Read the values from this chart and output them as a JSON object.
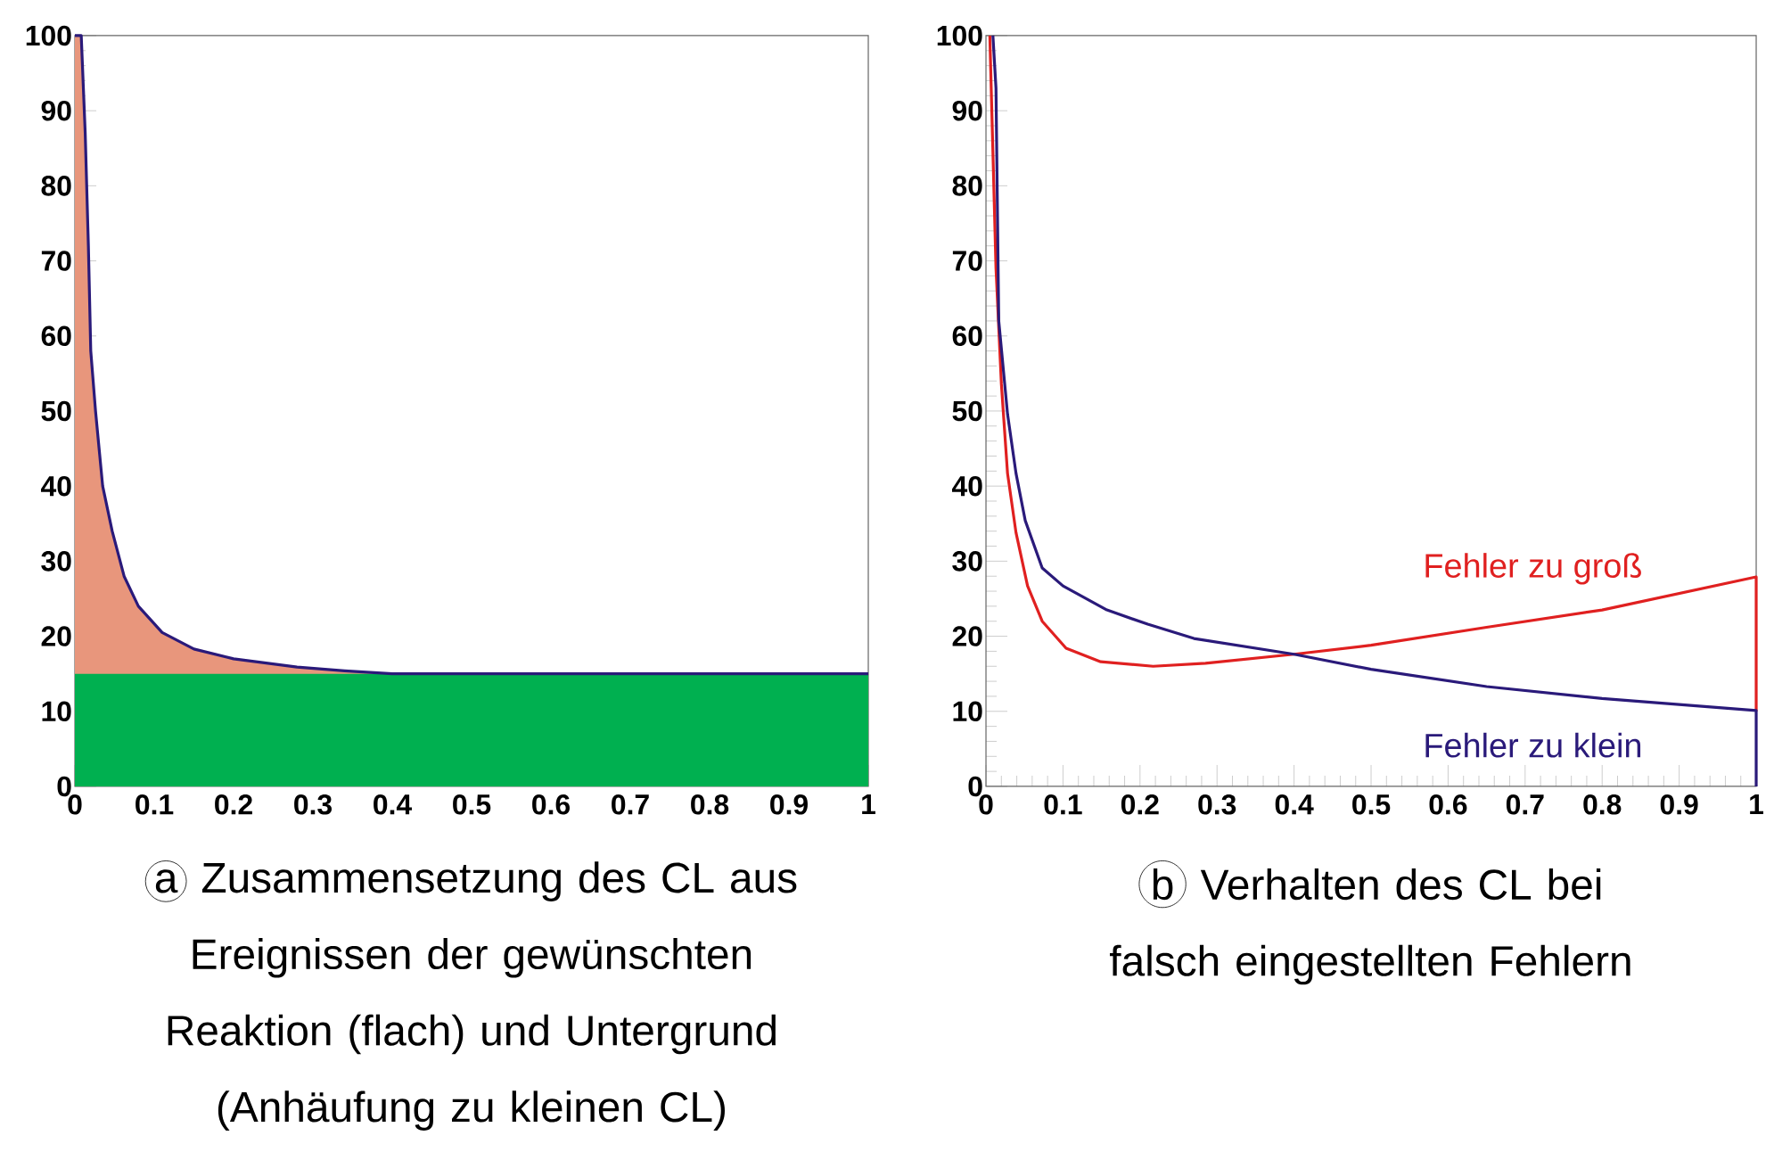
{
  "chart_data": [
    {
      "type": "area",
      "title": "Zusammensetzung des CL aus Ereignissen der gewünschten Reaktion (flach) und Untergrund (Anhäufung zu kleinen CL)",
      "annotations": [
        "a"
      ],
      "legend": false,
      "grid": false,
      "x": [
        0,
        0.008,
        0.013,
        0.017,
        0.02,
        0.026,
        0.035,
        0.047,
        0.062,
        0.08,
        0.11,
        0.15,
        0.2,
        0.28,
        0.34,
        0.4,
        0.5,
        0.6,
        0.7,
        0.8,
        0.9,
        1.0
      ],
      "series": [
        {
          "color": "#e8967c",
          "values": [
            100,
            100,
            87,
            72,
            58,
            50,
            40,
            34,
            28,
            24,
            20.5,
            18.3,
            17,
            15.9,
            15.4,
            15,
            15,
            15,
            15,
            15,
            15,
            15
          ]
        },
        {
          "color": "#00b050",
          "values": [
            15,
            15,
            15,
            15,
            15,
            15,
            15,
            15,
            15,
            15,
            15,
            15,
            15,
            15,
            15,
            15,
            15,
            15,
            15,
            15,
            15,
            15
          ]
        },
        {
          "type": "line",
          "color": "#2a1a7a",
          "values": [
            100,
            100,
            87,
            72,
            58,
            50,
            40,
            34,
            28,
            24,
            20.5,
            18.3,
            17,
            15.9,
            15.4,
            15,
            15,
            15,
            15,
            15,
            15,
            15
          ]
        }
      ],
      "xlim": [
        0,
        1
      ],
      "ylim": [
        0,
        100
      ],
      "xticks": [
        0,
        0.1,
        0.2,
        0.3,
        0.4,
        0.5,
        0.6,
        0.7,
        0.8,
        0.9,
        1
      ],
      "yticks": [
        0,
        10,
        20,
        30,
        40,
        50,
        60,
        70,
        80,
        90,
        100
      ]
    },
    {
      "type": "line",
      "title": "Verhalten des CL bei falsch eingestellten Fehlern",
      "annotations": [
        "b"
      ],
      "legend": false,
      "grid": false,
      "series": [
        {
          "name": "Fehler zu groß",
          "color": "#e02020",
          "x": [
            0.005,
            0.013,
            0.02,
            0.028,
            0.039,
            0.054,
            0.073,
            0.104,
            0.149,
            0.217,
            0.285,
            0.4,
            0.5,
            0.65,
            0.8,
            1.0,
            1.0
          ],
          "values": [
            100,
            69,
            53.6,
            41.7,
            33.8,
            26.7,
            22,
            18.4,
            16.6,
            16,
            16.4,
            17.6,
            18.8,
            21.2,
            23.5,
            27.9,
            10
          ]
        },
        {
          "name": "Fehler zu klein",
          "color": "#2a1a7a",
          "x": [
            0.009,
            0.013,
            0.0166,
            0.028,
            0.039,
            0.051,
            0.073,
            0.1,
            0.157,
            0.21,
            0.27,
            0.4,
            0.5,
            0.65,
            0.8,
            1.0,
            1.0
          ],
          "values": [
            100,
            93,
            62,
            49.6,
            41.7,
            35.4,
            29.1,
            26.7,
            23.5,
            21.6,
            19.7,
            17.6,
            15.6,
            13.3,
            11.7,
            10.1,
            0
          ]
        }
      ],
      "xlim": [
        0,
        1
      ],
      "ylim": [
        0,
        100
      ],
      "xticks": [
        0,
        0.1,
        0.2,
        0.3,
        0.4,
        0.5,
        0.6,
        0.7,
        0.8,
        0.9,
        1
      ],
      "yticks": [
        0,
        10,
        20,
        30,
        40,
        50,
        60,
        70,
        80,
        90,
        100
      ]
    }
  ]
}
